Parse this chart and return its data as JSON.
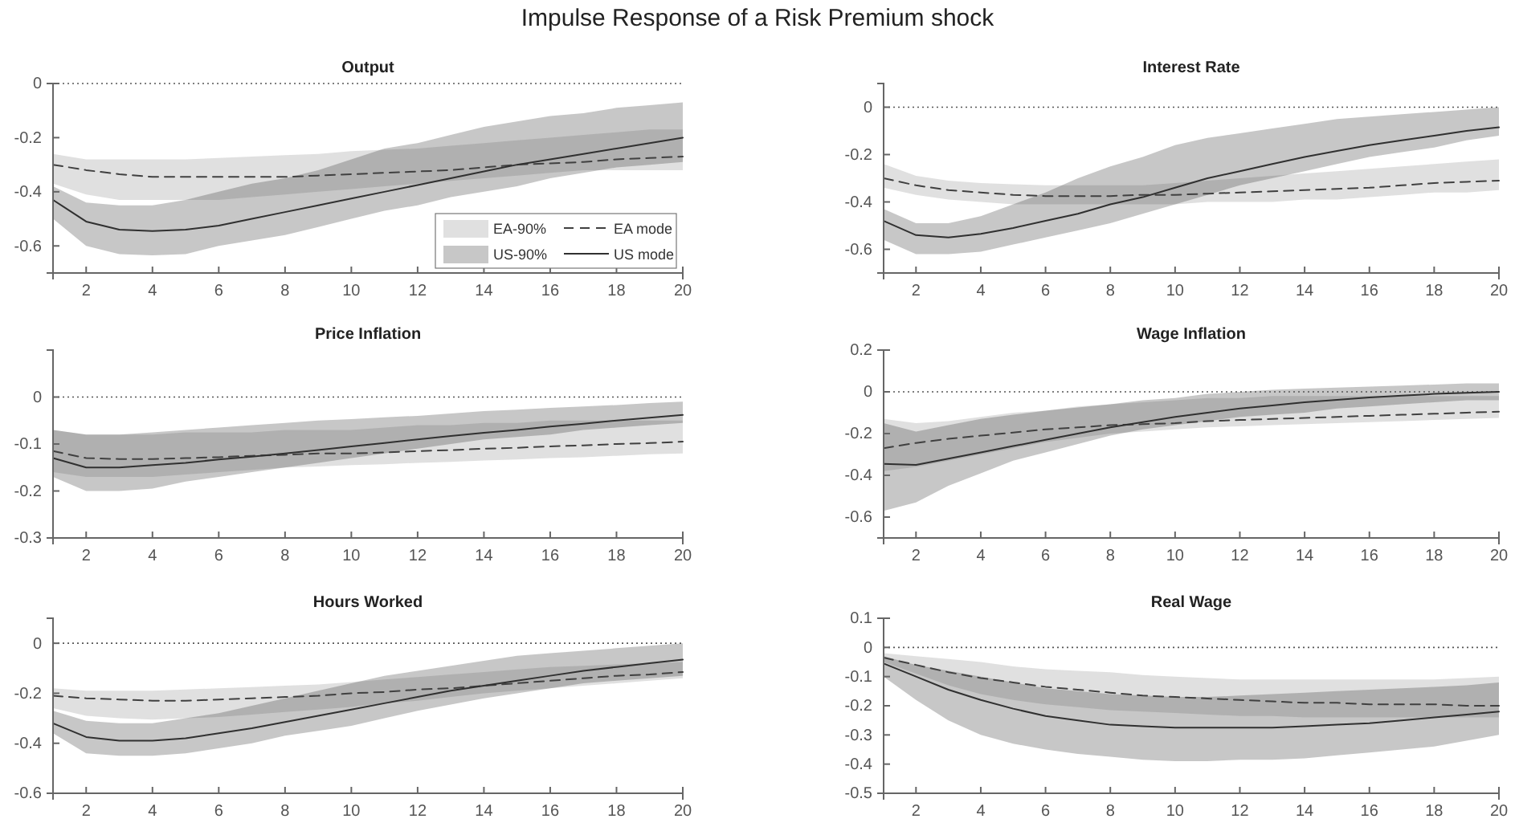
{
  "chart_data": [
    {
      "type": "other",
      "title": "Impulse Response of a Risk Premium shock"
    },
    {
      "type": "line",
      "title": "Output",
      "x": [
        1,
        2,
        3,
        4,
        5,
        6,
        7,
        8,
        9,
        10,
        11,
        12,
        13,
        14,
        15,
        16,
        17,
        18,
        19,
        20
      ],
      "xlim": [
        1,
        20
      ],
      "xticks": [
        2,
        4,
        6,
        8,
        10,
        12,
        14,
        16,
        18,
        20
      ],
      "ylim": [
        -0.7,
        0
      ],
      "yticks": [
        -0.6,
        -0.4,
        -0.2,
        0
      ],
      "ref_lines": [
        {
          "axis": "y",
          "value": 0,
          "line_style": "dotted"
        }
      ],
      "legend": "bottom right",
      "annotations": [
        "EA-90%",
        "US-90%"
      ],
      "series": [
        {
          "name": "EA mode",
          "color": "#404040",
          "line_style": "dashed",
          "values": [
            -0.3,
            -0.32,
            -0.335,
            -0.345,
            -0.345,
            -0.345,
            -0.345,
            -0.345,
            -0.34,
            -0.335,
            -0.33,
            -0.325,
            -0.32,
            -0.31,
            -0.3,
            -0.295,
            -0.29,
            -0.28,
            -0.275,
            -0.27
          ],
          "upper": [
            -0.26,
            -0.28,
            -0.28,
            -0.28,
            -0.28,
            -0.275,
            -0.27,
            -0.265,
            -0.26,
            -0.25,
            -0.245,
            -0.24,
            -0.23,
            -0.22,
            -0.21,
            -0.2,
            -0.19,
            -0.18,
            -0.17,
            -0.17
          ],
          "lower": [
            -0.37,
            -0.41,
            -0.43,
            -0.43,
            -0.43,
            -0.43,
            -0.42,
            -0.41,
            -0.4,
            -0.39,
            -0.38,
            -0.37,
            -0.36,
            -0.35,
            -0.34,
            -0.33,
            -0.32,
            -0.32,
            -0.32,
            -0.32
          ]
        },
        {
          "name": "US mode",
          "color": "#303030",
          "line_style": "solid",
          "values": [
            -0.43,
            -0.51,
            -0.54,
            -0.545,
            -0.54,
            -0.525,
            -0.5,
            -0.475,
            -0.45,
            -0.425,
            -0.4,
            -0.375,
            -0.35,
            -0.325,
            -0.3,
            -0.28,
            -0.26,
            -0.24,
            -0.22,
            -0.2
          ],
          "upper": [
            -0.38,
            -0.44,
            -0.45,
            -0.45,
            -0.43,
            -0.4,
            -0.37,
            -0.35,
            -0.32,
            -0.28,
            -0.24,
            -0.22,
            -0.19,
            -0.16,
            -0.14,
            -0.12,
            -0.11,
            -0.09,
            -0.08,
            -0.07
          ],
          "lower": [
            -0.5,
            -0.6,
            -0.63,
            -0.635,
            -0.63,
            -0.6,
            -0.58,
            -0.56,
            -0.53,
            -0.5,
            -0.47,
            -0.45,
            -0.42,
            -0.4,
            -0.38,
            -0.35,
            -0.33,
            -0.31,
            -0.3,
            -0.29
          ]
        }
      ]
    },
    {
      "type": "line",
      "title": "Interest Rate",
      "x": [
        1,
        2,
        3,
        4,
        5,
        6,
        7,
        8,
        9,
        10,
        11,
        12,
        13,
        14,
        15,
        16,
        17,
        18,
        19,
        20
      ],
      "xlim": [
        1,
        20
      ],
      "xticks": [
        2,
        4,
        6,
        8,
        10,
        12,
        14,
        16,
        18,
        20
      ],
      "ylim": [
        -0.7,
        0.1
      ],
      "yticks": [
        -0.6,
        -0.4,
        -0.2,
        0
      ],
      "ref_lines": [
        {
          "axis": "y",
          "value": 0,
          "line_style": "dotted"
        }
      ],
      "series": [
        {
          "color": "#404040",
          "line_style": "dashed",
          "values": [
            -0.3,
            -0.33,
            -0.35,
            -0.36,
            -0.37,
            -0.375,
            -0.375,
            -0.375,
            -0.37,
            -0.37,
            -0.365,
            -0.36,
            -0.355,
            -0.35,
            -0.345,
            -0.34,
            -0.33,
            -0.32,
            -0.315,
            -0.31
          ],
          "upper": [
            -0.24,
            -0.29,
            -0.31,
            -0.32,
            -0.325,
            -0.33,
            -0.33,
            -0.33,
            -0.33,
            -0.32,
            -0.31,
            -0.3,
            -0.29,
            -0.28,
            -0.27,
            -0.26,
            -0.25,
            -0.24,
            -0.23,
            -0.22
          ],
          "lower": [
            -0.34,
            -0.37,
            -0.39,
            -0.4,
            -0.41,
            -0.41,
            -0.41,
            -0.41,
            -0.41,
            -0.41,
            -0.4,
            -0.4,
            -0.4,
            -0.39,
            -0.39,
            -0.38,
            -0.37,
            -0.36,
            -0.36,
            -0.35
          ]
        },
        {
          "color": "#303030",
          "line_style": "solid",
          "values": [
            -0.48,
            -0.54,
            -0.55,
            -0.535,
            -0.51,
            -0.48,
            -0.45,
            -0.41,
            -0.38,
            -0.34,
            -0.3,
            -0.27,
            -0.24,
            -0.21,
            -0.185,
            -0.16,
            -0.14,
            -0.12,
            -0.1,
            -0.085
          ],
          "upper": [
            -0.43,
            -0.49,
            -0.49,
            -0.46,
            -0.41,
            -0.36,
            -0.3,
            -0.25,
            -0.21,
            -0.16,
            -0.13,
            -0.11,
            -0.09,
            -0.07,
            -0.05,
            -0.04,
            -0.03,
            -0.02,
            -0.01,
            0
          ],
          "lower": [
            -0.56,
            -0.62,
            -0.62,
            -0.61,
            -0.58,
            -0.55,
            -0.52,
            -0.49,
            -0.45,
            -0.41,
            -0.37,
            -0.33,
            -0.3,
            -0.27,
            -0.24,
            -0.21,
            -0.19,
            -0.17,
            -0.14,
            -0.12
          ]
        }
      ]
    },
    {
      "type": "line",
      "title": "Price Inflation",
      "x": [
        1,
        2,
        3,
        4,
        5,
        6,
        7,
        8,
        9,
        10,
        11,
        12,
        13,
        14,
        15,
        16,
        17,
        18,
        19,
        20
      ],
      "xlim": [
        1,
        20
      ],
      "xticks": [
        2,
        4,
        6,
        8,
        10,
        12,
        14,
        16,
        18,
        20
      ],
      "ylim": [
        -0.3,
        0.1
      ],
      "yticks": [
        -0.3,
        -0.2,
        -0.1,
        0
      ],
      "ref_lines": [
        {
          "axis": "y",
          "value": 0,
          "line_style": "dotted"
        }
      ],
      "series": [
        {
          "color": "#404040",
          "line_style": "dashed",
          "values": [
            -0.115,
            -0.13,
            -0.132,
            -0.132,
            -0.13,
            -0.128,
            -0.125,
            -0.123,
            -0.12,
            -0.12,
            -0.118,
            -0.115,
            -0.113,
            -0.11,
            -0.108,
            -0.105,
            -0.103,
            -0.1,
            -0.098,
            -0.095
          ],
          "upper": [
            -0.07,
            -0.08,
            -0.08,
            -0.08,
            -0.075,
            -0.075,
            -0.075,
            -0.07,
            -0.07,
            -0.07,
            -0.065,
            -0.06,
            -0.06,
            -0.055,
            -0.055,
            -0.05,
            -0.05,
            -0.05,
            -0.05,
            -0.05
          ],
          "lower": [
            -0.16,
            -0.17,
            -0.17,
            -0.17,
            -0.165,
            -0.16,
            -0.155,
            -0.15,
            -0.148,
            -0.145,
            -0.143,
            -0.14,
            -0.138,
            -0.135,
            -0.133,
            -0.13,
            -0.128,
            -0.125,
            -0.122,
            -0.12
          ]
        },
        {
          "color": "#303030",
          "line_style": "solid",
          "values": [
            -0.13,
            -0.15,
            -0.15,
            -0.145,
            -0.14,
            -0.133,
            -0.127,
            -0.12,
            -0.113,
            -0.105,
            -0.098,
            -0.09,
            -0.083,
            -0.076,
            -0.07,
            -0.063,
            -0.057,
            -0.05,
            -0.044,
            -0.038
          ],
          "upper": [
            -0.07,
            -0.08,
            -0.08,
            -0.075,
            -0.07,
            -0.065,
            -0.06,
            -0.055,
            -0.05,
            -0.047,
            -0.043,
            -0.04,
            -0.035,
            -0.03,
            -0.027,
            -0.023,
            -0.02,
            -0.017,
            -0.013,
            -0.01
          ],
          "lower": [
            -0.17,
            -0.2,
            -0.2,
            -0.195,
            -0.18,
            -0.17,
            -0.16,
            -0.15,
            -0.14,
            -0.13,
            -0.12,
            -0.11,
            -0.1,
            -0.09,
            -0.085,
            -0.08,
            -0.07,
            -0.065,
            -0.06,
            -0.055
          ]
        }
      ]
    },
    {
      "type": "line",
      "title": "Wage Inflation",
      "x": [
        1,
        2,
        3,
        4,
        5,
        6,
        7,
        8,
        9,
        10,
        11,
        12,
        13,
        14,
        15,
        16,
        17,
        18,
        19,
        20
      ],
      "xlim": [
        1,
        20
      ],
      "xticks": [
        2,
        4,
        6,
        8,
        10,
        12,
        14,
        16,
        18,
        20
      ],
      "ylim": [
        -0.7,
        0.2
      ],
      "yticks": [
        -0.6,
        -0.4,
        -0.2,
        0,
        0.2
      ],
      "ref_lines": [
        {
          "axis": "y",
          "value": 0,
          "line_style": "dotted"
        }
      ],
      "series": [
        {
          "color": "#404040",
          "line_style": "dashed",
          "values": [
            -0.27,
            -0.245,
            -0.225,
            -0.21,
            -0.195,
            -0.18,
            -0.17,
            -0.16,
            -0.155,
            -0.15,
            -0.14,
            -0.135,
            -0.13,
            -0.125,
            -0.12,
            -0.115,
            -0.11,
            -0.105,
            -0.1,
            -0.095
          ],
          "upper": [
            -0.13,
            -0.15,
            -0.14,
            -0.12,
            -0.1,
            -0.09,
            -0.07,
            -0.06,
            -0.05,
            -0.04,
            -0.03,
            -0.03,
            -0.02,
            -0.02,
            -0.02,
            -0.02,
            -0.02,
            -0.02,
            -0.02,
            -0.02
          ],
          "lower": [
            -0.38,
            -0.36,
            -0.33,
            -0.3,
            -0.27,
            -0.24,
            -0.22,
            -0.2,
            -0.19,
            -0.18,
            -0.17,
            -0.165,
            -0.16,
            -0.155,
            -0.15,
            -0.145,
            -0.14,
            -0.135,
            -0.13,
            -0.125
          ]
        },
        {
          "color": "#303030",
          "line_style": "solid",
          "values": [
            -0.345,
            -0.35,
            -0.32,
            -0.29,
            -0.26,
            -0.23,
            -0.2,
            -0.17,
            -0.145,
            -0.12,
            -0.1,
            -0.08,
            -0.065,
            -0.05,
            -0.038,
            -0.027,
            -0.018,
            -0.01,
            -0.005,
            0
          ],
          "upper": [
            -0.15,
            -0.19,
            -0.16,
            -0.13,
            -0.11,
            -0.09,
            -0.075,
            -0.06,
            -0.04,
            -0.03,
            -0.01,
            0,
            0.01,
            0.015,
            0.02,
            0.025,
            0.03,
            0.035,
            0.04,
            0.04
          ],
          "lower": [
            -0.57,
            -0.53,
            -0.45,
            -0.39,
            -0.33,
            -0.29,
            -0.25,
            -0.21,
            -0.18,
            -0.16,
            -0.14,
            -0.12,
            -0.11,
            -0.1,
            -0.08,
            -0.07,
            -0.06,
            -0.05,
            -0.04,
            -0.04
          ]
        }
      ]
    },
    {
      "type": "line",
      "title": "Hours Worked",
      "x": [
        1,
        2,
        3,
        4,
        5,
        6,
        7,
        8,
        9,
        10,
        11,
        12,
        13,
        14,
        15,
        16,
        17,
        18,
        19,
        20
      ],
      "xlim": [
        1,
        20
      ],
      "xticks": [
        2,
        4,
        6,
        8,
        10,
        12,
        14,
        16,
        18,
        20
      ],
      "ylim": [
        -0.6,
        0.1
      ],
      "yticks": [
        -0.6,
        -0.4,
        -0.2,
        0
      ],
      "ref_lines": [
        {
          "axis": "y",
          "value": 0,
          "line_style": "dotted"
        }
      ],
      "series": [
        {
          "color": "#404040",
          "line_style": "dashed",
          "values": [
            -0.21,
            -0.22,
            -0.225,
            -0.23,
            -0.23,
            -0.225,
            -0.22,
            -0.215,
            -0.21,
            -0.2,
            -0.195,
            -0.185,
            -0.18,
            -0.17,
            -0.16,
            -0.15,
            -0.14,
            -0.13,
            -0.125,
            -0.115
          ],
          "upper": [
            -0.18,
            -0.19,
            -0.19,
            -0.19,
            -0.185,
            -0.18,
            -0.175,
            -0.17,
            -0.165,
            -0.155,
            -0.145,
            -0.135,
            -0.125,
            -0.115,
            -0.105,
            -0.095,
            -0.09,
            -0.085,
            -0.08,
            -0.075
          ],
          "lower": [
            -0.26,
            -0.29,
            -0.3,
            -0.305,
            -0.3,
            -0.295,
            -0.285,
            -0.275,
            -0.265,
            -0.255,
            -0.24,
            -0.23,
            -0.215,
            -0.2,
            -0.19,
            -0.18,
            -0.17,
            -0.16,
            -0.15,
            -0.14
          ]
        },
        {
          "color": "#303030",
          "line_style": "solid",
          "values": [
            -0.32,
            -0.375,
            -0.39,
            -0.39,
            -0.38,
            -0.36,
            -0.34,
            -0.315,
            -0.29,
            -0.265,
            -0.24,
            -0.215,
            -0.19,
            -0.17,
            -0.15,
            -0.13,
            -0.11,
            -0.095,
            -0.08,
            -0.065
          ],
          "upper": [
            -0.27,
            -0.31,
            -0.32,
            -0.32,
            -0.3,
            -0.28,
            -0.25,
            -0.22,
            -0.19,
            -0.16,
            -0.13,
            -0.11,
            -0.09,
            -0.07,
            -0.05,
            -0.04,
            -0.03,
            -0.02,
            -0.01,
            0
          ],
          "lower": [
            -0.36,
            -0.44,
            -0.45,
            -0.45,
            -0.44,
            -0.42,
            -0.4,
            -0.37,
            -0.35,
            -0.33,
            -0.3,
            -0.27,
            -0.245,
            -0.22,
            -0.2,
            -0.18,
            -0.16,
            -0.15,
            -0.14,
            -0.13
          ]
        }
      ]
    },
    {
      "type": "line",
      "title": "Real Wage",
      "x": [
        1,
        2,
        3,
        4,
        5,
        6,
        7,
        8,
        9,
        10,
        11,
        12,
        13,
        14,
        15,
        16,
        17,
        18,
        19,
        20
      ],
      "xlim": [
        1,
        20
      ],
      "xticks": [
        2,
        4,
        6,
        8,
        10,
        12,
        14,
        16,
        18,
        20
      ],
      "ylim": [
        -0.5,
        0.1
      ],
      "yticks": [
        -0.5,
        -0.4,
        -0.3,
        -0.2,
        -0.1,
        0,
        0.1
      ],
      "ref_lines": [
        {
          "axis": "y",
          "value": 0,
          "line_style": "dotted"
        }
      ],
      "series": [
        {
          "color": "#404040",
          "line_style": "dashed",
          "values": [
            -0.035,
            -0.06,
            -0.085,
            -0.105,
            -0.12,
            -0.135,
            -0.145,
            -0.155,
            -0.165,
            -0.17,
            -0.175,
            -0.18,
            -0.185,
            -0.19,
            -0.19,
            -0.195,
            -0.195,
            -0.195,
            -0.2,
            -0.2
          ],
          "upper": [
            -0.02,
            -0.03,
            -0.04,
            -0.05,
            -0.065,
            -0.075,
            -0.08,
            -0.085,
            -0.095,
            -0.1,
            -0.105,
            -0.11,
            -0.11,
            -0.11,
            -0.11,
            -0.11,
            -0.11,
            -0.11,
            -0.105,
            -0.1
          ],
          "lower": [
            -0.05,
            -0.09,
            -0.13,
            -0.16,
            -0.18,
            -0.195,
            -0.205,
            -0.215,
            -0.22,
            -0.225,
            -0.23,
            -0.235,
            -0.235,
            -0.24,
            -0.24,
            -0.24,
            -0.24,
            -0.24,
            -0.24,
            -0.24
          ]
        },
        {
          "color": "#303030",
          "line_style": "solid",
          "values": [
            -0.055,
            -0.1,
            -0.145,
            -0.18,
            -0.21,
            -0.235,
            -0.25,
            -0.265,
            -0.27,
            -0.275,
            -0.275,
            -0.275,
            -0.275,
            -0.27,
            -0.265,
            -0.26,
            -0.25,
            -0.24,
            -0.23,
            -0.22
          ],
          "upper": [
            -0.03,
            -0.06,
            -0.08,
            -0.1,
            -0.12,
            -0.14,
            -0.15,
            -0.16,
            -0.165,
            -0.17,
            -0.17,
            -0.165,
            -0.16,
            -0.155,
            -0.15,
            -0.145,
            -0.14,
            -0.135,
            -0.13,
            -0.12
          ],
          "lower": [
            -0.1,
            -0.18,
            -0.25,
            -0.3,
            -0.33,
            -0.35,
            -0.365,
            -0.375,
            -0.385,
            -0.39,
            -0.39,
            -0.385,
            -0.385,
            -0.38,
            -0.37,
            -0.36,
            -0.35,
            -0.34,
            -0.32,
            -0.3
          ]
        }
      ]
    }
  ]
}
